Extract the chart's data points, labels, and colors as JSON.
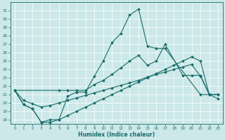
{
  "xlabel": "Humidex (Indice chaleur)",
  "background_color": "#cce8e8",
  "line_color": "#1a6b6b",
  "line1_x": [
    0,
    1,
    2,
    3,
    4,
    5,
    6,
    7,
    8,
    9,
    10,
    11,
    12,
    13,
    14,
    15,
    16,
    17,
    21,
    22
  ],
  "line1_y": [
    21.5,
    19.8,
    19.3,
    17.7,
    18.0,
    18.0,
    20.8,
    21.3,
    21.3,
    23.2,
    25.0,
    27.2,
    28.3,
    30.5,
    31.2,
    26.8,
    26.5,
    26.5,
    21.0,
    21.0
  ],
  "line2_x": [
    0,
    5,
    6,
    7,
    8,
    9,
    10,
    11,
    12,
    13,
    14,
    15,
    16,
    17,
    19,
    20,
    21,
    22,
    23
  ],
  "line2_y": [
    21.5,
    21.5,
    21.5,
    21.5,
    21.5,
    22.2,
    22.7,
    23.4,
    24.2,
    25.0,
    25.7,
    24.5,
    25.0,
    27.0,
    23.3,
    23.3,
    23.3,
    21.0,
    21.0
  ],
  "line3_x": [
    0,
    1,
    2,
    3,
    4,
    5,
    6,
    7,
    8,
    9,
    10,
    11,
    12,
    13,
    14,
    15,
    16,
    17,
    18,
    19,
    20,
    21,
    22,
    23
  ],
  "line3_y": [
    21.5,
    20.3,
    19.9,
    19.5,
    19.7,
    20.0,
    20.3,
    20.6,
    20.9,
    21.2,
    21.5,
    21.8,
    22.1,
    22.4,
    22.7,
    23.1,
    23.4,
    23.7,
    24.0,
    24.3,
    24.6,
    23.2,
    21.0,
    21.0
  ],
  "line4_x": [
    0,
    1,
    2,
    3,
    4,
    5,
    6,
    7,
    8,
    9,
    10,
    11,
    12,
    13,
    14,
    15,
    16,
    17,
    18,
    19,
    20,
    21,
    22,
    23
  ],
  "line4_y": [
    21.5,
    19.8,
    19.3,
    17.7,
    17.7,
    18.0,
    18.5,
    19.0,
    19.5,
    20.0,
    20.5,
    21.0,
    21.5,
    22.0,
    22.5,
    23.0,
    23.5,
    24.0,
    24.5,
    25.0,
    25.5,
    25.0,
    21.0,
    20.5
  ],
  "ylim": [
    17.5,
    32.0
  ],
  "xlim": [
    -0.5,
    23.5
  ],
  "yticks": [
    18,
    19,
    20,
    21,
    22,
    23,
    24,
    25,
    26,
    27,
    28,
    29,
    30,
    31
  ],
  "xticks": [
    0,
    1,
    2,
    3,
    4,
    5,
    6,
    7,
    8,
    9,
    10,
    11,
    12,
    13,
    14,
    15,
    16,
    17,
    18,
    19,
    20,
    21,
    22,
    23
  ]
}
